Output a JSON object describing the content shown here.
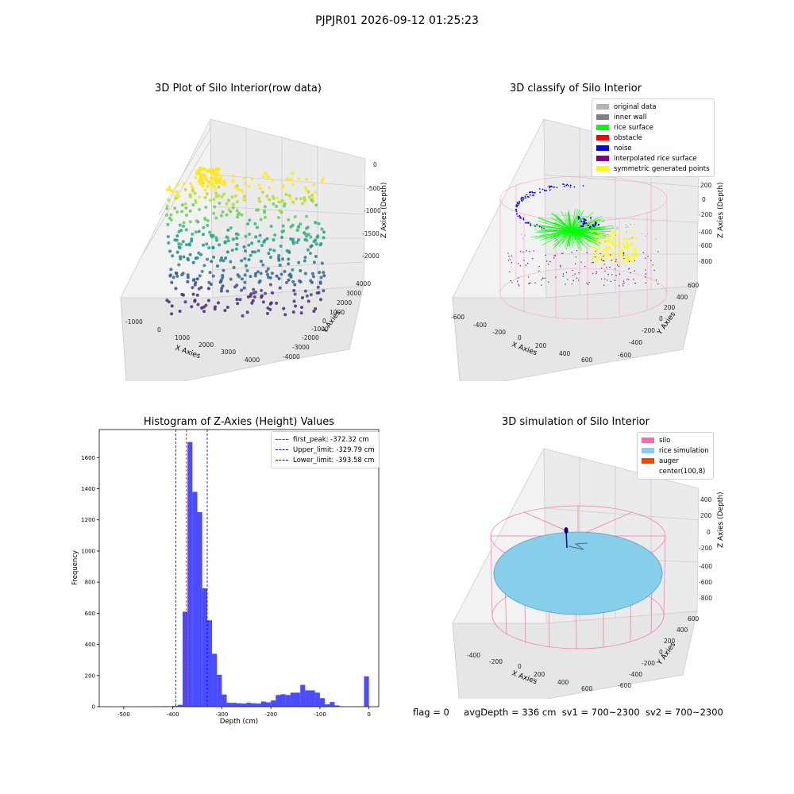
{
  "suptitle": "PJPJR01 2026-09-12 01:25:23",
  "raw_plot": {
    "title": "3D Plot of Silo Interior(row data)",
    "xlabel": "X Axies",
    "ylabel": "Y Axies",
    "zlabel": "Z Axies (Depth)",
    "x_ticks": [
      "-1000",
      "0",
      "1000",
      "2000",
      "3000",
      "4000"
    ],
    "y_ticks": [
      "-4000",
      "-3000",
      "-2000",
      "-1000",
      "0",
      "1000",
      "2000",
      "3000",
      "4000"
    ],
    "z_ticks": [
      "0",
      "-500",
      "-1000",
      "-1500",
      "-2000"
    ]
  },
  "classify_plot": {
    "title": "3D classify of Silo Interior",
    "xlabel": "X Axies",
    "ylabel": "Y Axies",
    "zlabel": "Z Axies (Depth)",
    "x_ticks": [
      "-600",
      "-400",
      "-200",
      "0",
      "200",
      "400",
      "600"
    ],
    "y_ticks": [
      "-600",
      "-400",
      "-200",
      "0",
      "200",
      "400",
      "600"
    ],
    "z_ticks": [
      "200",
      "0",
      "-200",
      "-400",
      "-600",
      "-800"
    ],
    "legend": [
      {
        "label": "original data",
        "color": "#b4b4b4"
      },
      {
        "label": "inner wall",
        "color": "#808080"
      },
      {
        "label": "rice surface",
        "color": "#00ff00"
      },
      {
        "label": "obstacle",
        "color": "#ff0000"
      },
      {
        "label": "noise",
        "color": "#0000ff"
      },
      {
        "label": "interpolated rice surface",
        "color": "#800080"
      },
      {
        "label": "symmetric generated points",
        "color": "#ffff00"
      }
    ]
  },
  "simulation_plot": {
    "title": "3D simulation of Silo Interior",
    "xlabel": "X Axies",
    "ylabel": "Y Axies",
    "zlabel": "Z Axies (Depth)",
    "x_ticks": [
      "-400",
      "-200",
      "0",
      "200",
      "400",
      "600"
    ],
    "y_ticks": [
      "-600",
      "-400",
      "-200",
      "0",
      "200",
      "400",
      "600"
    ],
    "z_ticks": [
      "400",
      "200",
      "0",
      "-200",
      "-400",
      "-600",
      "-800"
    ],
    "legend": [
      {
        "label": "silo",
        "color": "#ff69b4"
      },
      {
        "label": "rice simulation",
        "color": "#87ceeb"
      },
      {
        "label": "auger",
        "color": "#ff4500"
      },
      {
        "label": "center(100,8)",
        "color": "#ffffff"
      }
    ]
  },
  "status": {
    "flag": "flag = 0",
    "avg_depth": "avgDepth = 336 cm",
    "sv1": "sv1 = 700~2300",
    "sv2": "sv2 = 700~2300"
  },
  "chart_data": {
    "type": "bar",
    "title": "Histogram of Z-Axies (Height) Values",
    "xlabel": "Depth (cm)",
    "ylabel": "Frequency",
    "xlim": [
      -550,
      20
    ],
    "ylim": [
      0,
      1780
    ],
    "x_ticks": [
      -500,
      -400,
      -300,
      -200,
      -100,
      0
    ],
    "y_ticks": [
      0,
      200,
      400,
      600,
      800,
      1000,
      1200,
      1400,
      1600
    ],
    "bar_color": "#0000ff",
    "bin_width": 10,
    "bins": [
      {
        "x": -530,
        "v": 0
      },
      {
        "x": -520,
        "v": 0
      },
      {
        "x": -510,
        "v": 0
      },
      {
        "x": -500,
        "v": 0
      },
      {
        "x": -490,
        "v": 0
      },
      {
        "x": -480,
        "v": 0
      },
      {
        "x": -470,
        "v": 0
      },
      {
        "x": -460,
        "v": 0
      },
      {
        "x": -450,
        "v": 0
      },
      {
        "x": -440,
        "v": 1
      },
      {
        "x": -430,
        "v": 2
      },
      {
        "x": -420,
        "v": 3
      },
      {
        "x": -410,
        "v": 2
      },
      {
        "x": -400,
        "v": 5
      },
      {
        "x": -390,
        "v": 12
      },
      {
        "x": -380,
        "v": 610
      },
      {
        "x": -370,
        "v": 1700
      },
      {
        "x": -360,
        "v": 1380
      },
      {
        "x": -350,
        "v": 1250
      },
      {
        "x": -340,
        "v": 760
      },
      {
        "x": -330,
        "v": 555
      },
      {
        "x": -320,
        "v": 340
      },
      {
        "x": -310,
        "v": 205
      },
      {
        "x": -300,
        "v": 78
      },
      {
        "x": -290,
        "v": 25
      },
      {
        "x": -280,
        "v": 25
      },
      {
        "x": -270,
        "v": 22
      },
      {
        "x": -260,
        "v": 20
      },
      {
        "x": -250,
        "v": 25
      },
      {
        "x": -240,
        "v": 22
      },
      {
        "x": -230,
        "v": 20
      },
      {
        "x": -220,
        "v": 33
      },
      {
        "x": -210,
        "v": 28
      },
      {
        "x": -200,
        "v": 40
      },
      {
        "x": -190,
        "v": 75
      },
      {
        "x": -180,
        "v": 80
      },
      {
        "x": -170,
        "v": 75
      },
      {
        "x": -160,
        "v": 90
      },
      {
        "x": -150,
        "v": 90
      },
      {
        "x": -140,
        "v": 140
      },
      {
        "x": -130,
        "v": 105
      },
      {
        "x": -120,
        "v": 105
      },
      {
        "x": -110,
        "v": 90
      },
      {
        "x": -100,
        "v": 55
      },
      {
        "x": -90,
        "v": 15
      },
      {
        "x": -80,
        "v": 30
      },
      {
        "x": -70,
        "v": 8
      },
      {
        "x": -60,
        "v": 2
      },
      {
        "x": -50,
        "v": 0
      },
      {
        "x": -40,
        "v": 0
      },
      {
        "x": -30,
        "v": 0
      },
      {
        "x": -20,
        "v": 0
      },
      {
        "x": -10,
        "v": 195
      }
    ],
    "vlines": [
      {
        "x": -372.32,
        "color": "#ff0000",
        "label": "first_peak: -372.32 cm"
      },
      {
        "x": -329.79,
        "color": "#0000aa",
        "label": "Upper_limit: -329.79 cm"
      },
      {
        "x": -393.58,
        "color": "#0000aa",
        "label": "Lower_limit: -393.58 cm"
      }
    ]
  }
}
